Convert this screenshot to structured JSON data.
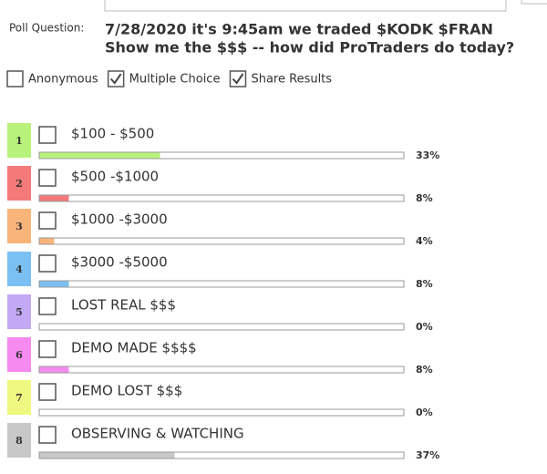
{
  "header": {
    "label": "Poll Question:",
    "question_lines": [
      "7/28/2020 it's 9:45am we traded $KODK $FRAN",
      "Show me the $$$ -- how did ProTraders do today?"
    ]
  },
  "settings": [
    {
      "label": "Anonymous",
      "checked": false
    },
    {
      "label": "Multiple Choice",
      "checked": true
    },
    {
      "label": "Share Results",
      "checked": true
    }
  ],
  "options": [
    {
      "number": 1,
      "color": "#b8f27c",
      "text": "$100 - $500",
      "value": 33,
      "value_label": "33%"
    },
    {
      "number": 2,
      "color": "#f47a7a",
      "text": "$500 -$1000",
      "value": 8,
      "value_label": "8%"
    },
    {
      "number": 3,
      "color": "#f9b47a",
      "text": "$1000 -$3000",
      "value": 4,
      "value_label": "4%"
    },
    {
      "number": 4,
      "color": "#7ac0f2",
      "text": "$3000 -$5000",
      "value": 8,
      "value_label": "8%"
    },
    {
      "number": 5,
      "color": "#c2a8f5",
      "text": "LOST REAL $$$",
      "value": 0,
      "value_label": "0%"
    },
    {
      "number": 6,
      "color": "#f58af0",
      "text": "DEMO MADE $$$$",
      "value": 8,
      "value_label": "8%"
    },
    {
      "number": 7,
      "color": "#eef77f",
      "text": "DEMO LOST $$$",
      "value": 0,
      "value_label": "0%"
    },
    {
      "number": 8,
      "color": "#c8c8c8",
      "text": "OBSERVING & WATCHING",
      "value": 37,
      "value_label": "37%"
    }
  ]
}
